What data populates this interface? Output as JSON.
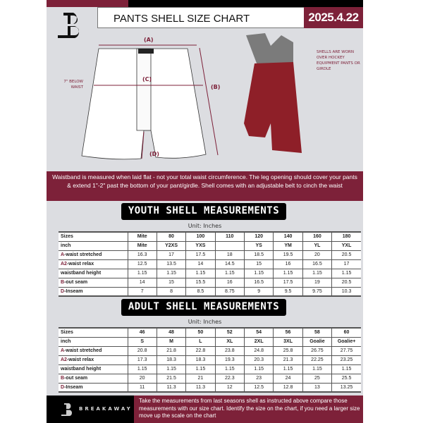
{
  "header": {
    "title": "PANTS SHELL SIZE CHART",
    "date": "2025.4.22"
  },
  "diagram": {
    "label_a": "(A)",
    "label_b": "(B)",
    "label_c": "(C)",
    "label_d": "(D)",
    "below_note": "7\" BELOW WAIST",
    "shells_note": "SHELLS ARE WORN OVER HOCKEY EQUIPMENT PANTS OR GIRDLE"
  },
  "notice": "Waistband is measured when laid flat - not your total waist circumference. The leg opening should cover your pants & extend 1\"-2\" past the bottom of your pant/girdle. Shell comes with an adjustable belt to cinch the waist",
  "youth": {
    "title": "YOUTH SHELL MEASUREMENTS",
    "unit": "Unit: Inches",
    "rows": [
      [
        "Sizes",
        "Mite",
        "80",
        "100",
        "110",
        "120",
        "140",
        "160",
        "180"
      ],
      [
        "inch",
        "Mite",
        "Y2XS",
        "YXS",
        "",
        "YS",
        "YM",
        "YL",
        "YXL"
      ],
      [
        "A-waist stretched",
        "16.3",
        "17",
        "17.5",
        "18",
        "18.5",
        "19.5",
        "20",
        "20.5"
      ],
      [
        "A2-waist relax",
        "12.5",
        "13.5",
        "14",
        "14.5",
        "15",
        "16",
        "16.5",
        "17"
      ],
      [
        "waistband height",
        "1.15",
        "1.15",
        "1.15",
        "1.15",
        "1.15",
        "1.15",
        "1.15",
        "1.15"
      ],
      [
        "B-out seam",
        "14",
        "15",
        "15.5",
        "16",
        "16.5",
        "17.5",
        "19",
        "20.5"
      ],
      [
        "D-Inseam",
        "7",
        "8",
        "8.5",
        "8.75",
        "9",
        "9.5",
        "9.75",
        "10.3"
      ]
    ]
  },
  "adult": {
    "title": "ADULT SHELL MEASUREMENTS",
    "unit": "Unit: Inches",
    "rows": [
      [
        "Sizes",
        "46",
        "48",
        "50",
        "52",
        "54",
        "56",
        "58",
        "60"
      ],
      [
        "inch",
        "S",
        "M",
        "L",
        "XL",
        "2XL",
        "3XL",
        "Goalie",
        "Goalie+"
      ],
      [
        "A-waist stretched",
        "20.8",
        "21.8",
        "22.8",
        "23.8",
        "24.8",
        "25.8",
        "26.75",
        "27.75"
      ],
      [
        "A2-waist relax",
        "17.3",
        "18.3",
        "18.3",
        "19.3",
        "20.3",
        "21.3",
        "22.25",
        "23.25"
      ],
      [
        "waistband height",
        "1.15",
        "1.15",
        "1.15",
        "1.15",
        "1.15",
        "1.15",
        "1.15",
        "1.15"
      ],
      [
        "B-out seam",
        "20",
        "21.5",
        "21",
        "22.3",
        "23",
        "24",
        "25",
        "25.5"
      ],
      [
        "D-Inseam",
        "11",
        "11.3",
        "11.3",
        "12",
        "12.5",
        "12.8",
        "13",
        "13.25"
      ]
    ]
  },
  "footer": {
    "brand": "BREAKAWAY",
    "note": "Take the measurements from last seasons shell as instructed above compare those measurements  with our size chart. Identify the size on the chart, if you need a larger size move up the scale on the chart"
  },
  "colors": {
    "maroon": "#7d2139",
    "background": "#dcdde1"
  }
}
